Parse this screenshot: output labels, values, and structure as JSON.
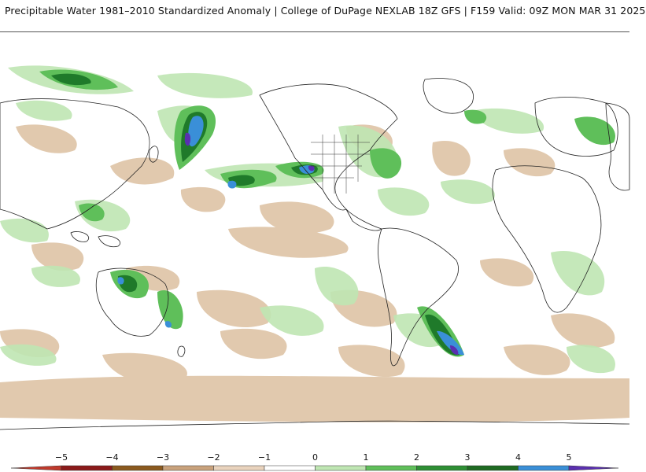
{
  "header": {
    "title": "Precipitable Water 1981–2010 Standardized Anomaly | College of DuPage NEXLAB   18Z GFS | F159 Valid: 09Z MON MAR 31 2025"
  },
  "colorbar": {
    "ticks": [
      "−5",
      "−4",
      "−3",
      "−2",
      "−1",
      "0",
      "1",
      "2",
      "3",
      "4",
      "5"
    ],
    "colors": {
      "neg5": "#c0392b",
      "neg4": "#8b1a1a",
      "neg3": "#8b5a1e",
      "neg2": "#c9a27c",
      "neg1": "#e9d3bd",
      "zero": "#ffffff",
      "pos1": "#bfe6b3",
      "pos2": "#5fbf5a",
      "pos3": "#2e8f34",
      "pos4": "#1f6b22",
      "pos5": "#3a8fd8",
      "max": "#5a2fb0"
    }
  },
  "map": {
    "land_outline_color": "#222222",
    "positive_anomaly_colors": [
      "#bfe6b3",
      "#5fbf5a",
      "#2e8f34",
      "#1f6b22",
      "#3a8fd8",
      "#5a2fb0"
    ],
    "negative_anomaly_colors": [
      "#e9d3bd",
      "#c9a27c"
    ]
  }
}
